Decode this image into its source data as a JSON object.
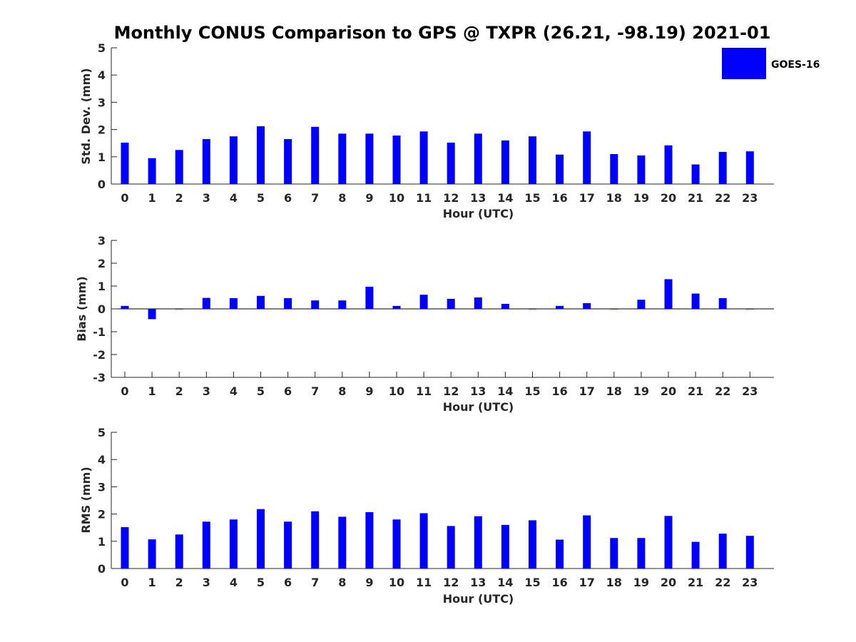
{
  "figure": {
    "title": "Monthly CONUS Comparison to GPS @ TXPR (26.21, -98.19) 2021-01"
  },
  "legend": {
    "label": "GOES-16",
    "color": "#0000ff",
    "placement": "top-right"
  },
  "chart_data": [
    {
      "type": "bar",
      "ylabel": "Std. Dev. (mm)",
      "xlabel": "Hour (UTC)",
      "ylim": [
        0,
        5
      ],
      "yticks": [
        0,
        1,
        2,
        3,
        4,
        5
      ],
      "categories": [
        "0",
        "1",
        "2",
        "3",
        "4",
        "5",
        "6",
        "7",
        "8",
        "9",
        "10",
        "11",
        "12",
        "13",
        "14",
        "15",
        "16",
        "17",
        "18",
        "19",
        "20",
        "21",
        "22",
        "23"
      ],
      "series": [
        {
          "name": "GOES-16",
          "values": [
            1.52,
            0.95,
            1.25,
            1.65,
            1.75,
            2.12,
            1.65,
            2.1,
            1.85,
            1.85,
            1.78,
            1.93,
            1.52,
            1.85,
            1.6,
            1.75,
            1.08,
            1.93,
            1.1,
            1.05,
            1.42,
            0.72,
            1.18,
            1.2
          ]
        }
      ]
    },
    {
      "type": "bar",
      "ylabel": "Bias (mm)",
      "xlabel": "Hour (UTC)",
      "ylim": [
        -3,
        3
      ],
      "yticks": [
        -3,
        -2,
        -1,
        0,
        1,
        2,
        3
      ],
      "categories": [
        "0",
        "1",
        "2",
        "3",
        "4",
        "5",
        "6",
        "7",
        "8",
        "9",
        "10",
        "11",
        "12",
        "13",
        "14",
        "15",
        "16",
        "17",
        "18",
        "19",
        "20",
        "21",
        "22",
        "23"
      ],
      "series": [
        {
          "name": "GOES-16",
          "values": [
            0.13,
            -0.45,
            0.0,
            0.48,
            0.47,
            0.57,
            0.47,
            0.37,
            0.37,
            0.97,
            0.13,
            0.62,
            0.44,
            0.5,
            0.22,
            0.0,
            0.13,
            0.25,
            0.0,
            0.4,
            1.3,
            0.67,
            0.47,
            0.0
          ]
        }
      ]
    },
    {
      "type": "bar",
      "ylabel": "RMS (mm)",
      "xlabel": "Hour (UTC)",
      "ylim": [
        0,
        5
      ],
      "yticks": [
        0,
        1,
        2,
        3,
        4,
        5
      ],
      "categories": [
        "0",
        "1",
        "2",
        "3",
        "4",
        "5",
        "6",
        "7",
        "8",
        "9",
        "10",
        "11",
        "12",
        "13",
        "14",
        "15",
        "16",
        "17",
        "18",
        "19",
        "20",
        "21",
        "22",
        "23"
      ],
      "series": [
        {
          "name": "GOES-16",
          "values": [
            1.52,
            1.07,
            1.25,
            1.72,
            1.8,
            2.18,
            1.72,
            2.1,
            1.9,
            2.07,
            1.8,
            2.03,
            1.56,
            1.92,
            1.6,
            1.77,
            1.06,
            1.95,
            1.12,
            1.12,
            1.93,
            0.98,
            1.28,
            1.2
          ]
        }
      ]
    }
  ]
}
